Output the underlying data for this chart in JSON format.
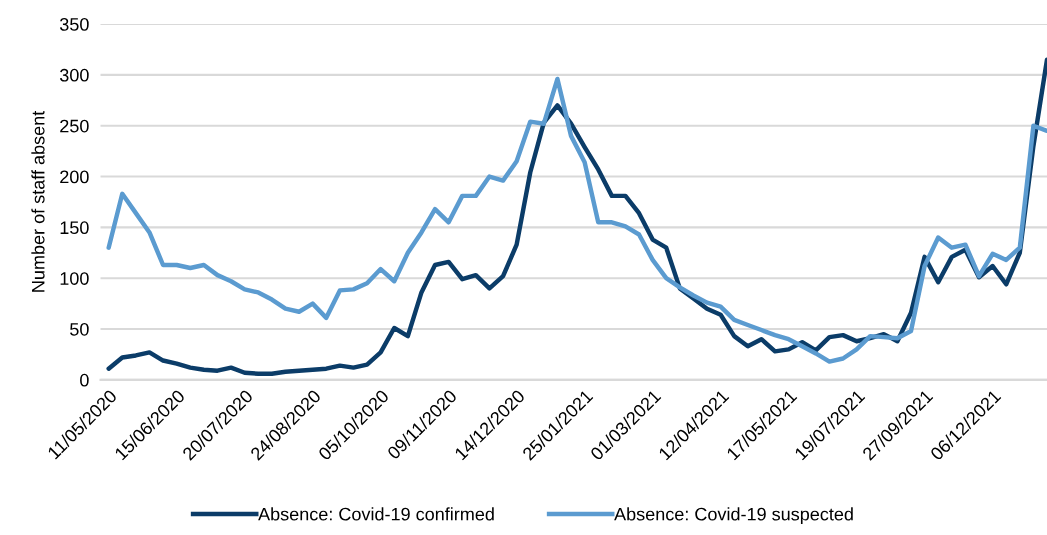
{
  "chart_data": {
    "type": "line",
    "ylabel": "Number of staff absent",
    "categories": [
      "11/05/2020",
      null,
      null,
      null,
      null,
      "15/06/2020",
      null,
      null,
      null,
      null,
      "20/07/2020",
      null,
      null,
      null,
      null,
      "24/08/2020",
      null,
      null,
      null,
      null,
      "05/10/2020",
      null,
      null,
      null,
      null,
      "09/11/2020",
      null,
      null,
      null,
      null,
      "14/12/2020",
      null,
      null,
      null,
      null,
      "25/01/2021",
      null,
      null,
      null,
      null,
      "01/03/2021",
      null,
      null,
      null,
      null,
      "12/04/2021",
      null,
      null,
      null,
      null,
      "17/05/2021",
      null,
      null,
      null,
      null,
      "19/07/2021",
      null,
      null,
      null,
      null,
      "27/09/2021",
      null,
      null,
      null,
      null,
      "06/12/2021",
      null,
      null,
      null,
      null
    ],
    "series": [
      {
        "name": "Absence: Covid-19 confirmed",
        "color": "#0b3c68",
        "values": [
          11,
          22,
          24,
          27,
          19,
          16,
          12,
          10,
          9,
          12,
          7,
          6,
          6,
          8,
          9,
          10,
          11,
          14,
          12,
          15,
          27,
          51,
          43,
          86,
          113,
          116,
          99,
          103,
          90,
          102,
          133,
          204,
          253,
          270,
          252,
          229,
          207,
          181,
          181,
          164,
          138,
          130,
          90,
          80,
          70,
          64,
          43,
          33,
          40,
          28,
          30,
          37,
          29,
          42,
          44,
          38,
          41,
          45,
          38,
          66,
          121,
          96,
          121,
          128,
          101,
          112,
          94,
          125,
          230,
          315
        ]
      },
      {
        "name": "Absence: Covid-19 suspected",
        "color": "#5b9bd0",
        "values": [
          130,
          183,
          164,
          145,
          113,
          113,
          110,
          113,
          103,
          97,
          89,
          86,
          79,
          70,
          67,
          75,
          61,
          88,
          89,
          95,
          109,
          97,
          125,
          145,
          168,
          155,
          181,
          181,
          200,
          196,
          215,
          254,
          252,
          296,
          240,
          214,
          155,
          155,
          151,
          143,
          118,
          100,
          91,
          83,
          76,
          72,
          59,
          54,
          49,
          44,
          40,
          33,
          26,
          18,
          21,
          30,
          43,
          42,
          41,
          48,
          112,
          140,
          130,
          133,
          102,
          124,
          118,
          130,
          250,
          245
        ]
      }
    ],
    "ylim": [
      0,
      350
    ],
    "yticks": [
      0,
      50,
      100,
      150,
      200,
      250,
      300,
      350
    ],
    "grid": "y",
    "legend": "bottom",
    "line_style": "solid",
    "marker": "none"
  }
}
